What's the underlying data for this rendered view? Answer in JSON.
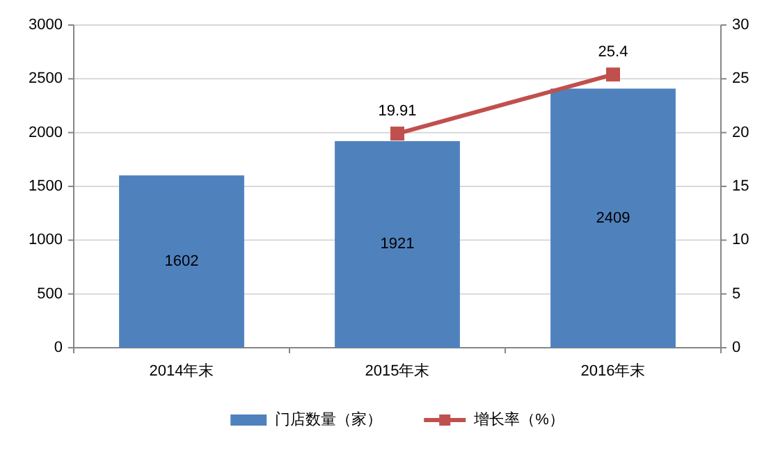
{
  "chart_data": {
    "type": "bar",
    "categories": [
      "2014年末",
      "2015年末",
      "2016年末"
    ],
    "series": [
      {
        "name": "门店数量（家）",
        "color": "#4f81bd",
        "values": [
          1602,
          1921,
          2409
        ]
      },
      {
        "name": "增长率（%）",
        "type": "line",
        "axis": "y2",
        "color": "#c0504d",
        "marker": "square",
        "values": [
          null,
          19.91,
          25.4
        ]
      }
    ],
    "ylim": [
      0,
      3000
    ],
    "yticks": [
      0,
      500,
      1000,
      1500,
      2000,
      2500,
      3000
    ],
    "y2lim": [
      0,
      30
    ],
    "y2ticks": [
      0,
      5,
      10,
      15,
      20,
      25,
      30
    ],
    "grid": "y",
    "legend": "bottom",
    "data_labels": true
  }
}
